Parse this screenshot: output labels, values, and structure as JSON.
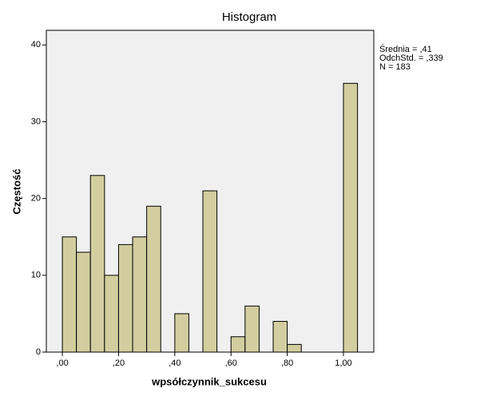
{
  "chart_data": {
    "type": "histogram",
    "title": "Histogram",
    "x_label": "wpsółczynnik_sukcesu",
    "y_label": "Częstość",
    "bins": [
      0,
      0.05,
      0.1,
      0.15,
      0.2,
      0.25,
      0.3,
      0.35,
      0.4,
      0.45,
      0.5,
      0.55,
      0.6,
      0.65,
      0.7,
      0.75,
      0.8,
      0.85,
      0.9,
      0.95,
      1.0,
      1.05
    ],
    "values": [
      15,
      13,
      23,
      10,
      14,
      15,
      19,
      0,
      5,
      0,
      21,
      0,
      2,
      6,
      0,
      4,
      1,
      0,
      0,
      0,
      35
    ],
    "color": "#d3cea0",
    "xlim": [
      -0.057,
      1.108
    ],
    "ylim": [
      0,
      41.9
    ],
    "xticks": [
      {
        "value": 0,
        "label": ",00"
      },
      {
        "value": 0.2,
        "label": ",20"
      },
      {
        "value": 0.4,
        "label": ",40"
      },
      {
        "value": 0.6,
        "label": ",60"
      },
      {
        "value": 0.8,
        "label": ",80"
      },
      {
        "value": 1.0,
        "label": "1,00"
      }
    ],
    "yticks": [
      0,
      10,
      20,
      30,
      40
    ],
    "annotations": [
      "Średnia = ,41",
      "OdchStd. = ,339",
      "N = 183"
    ]
  }
}
